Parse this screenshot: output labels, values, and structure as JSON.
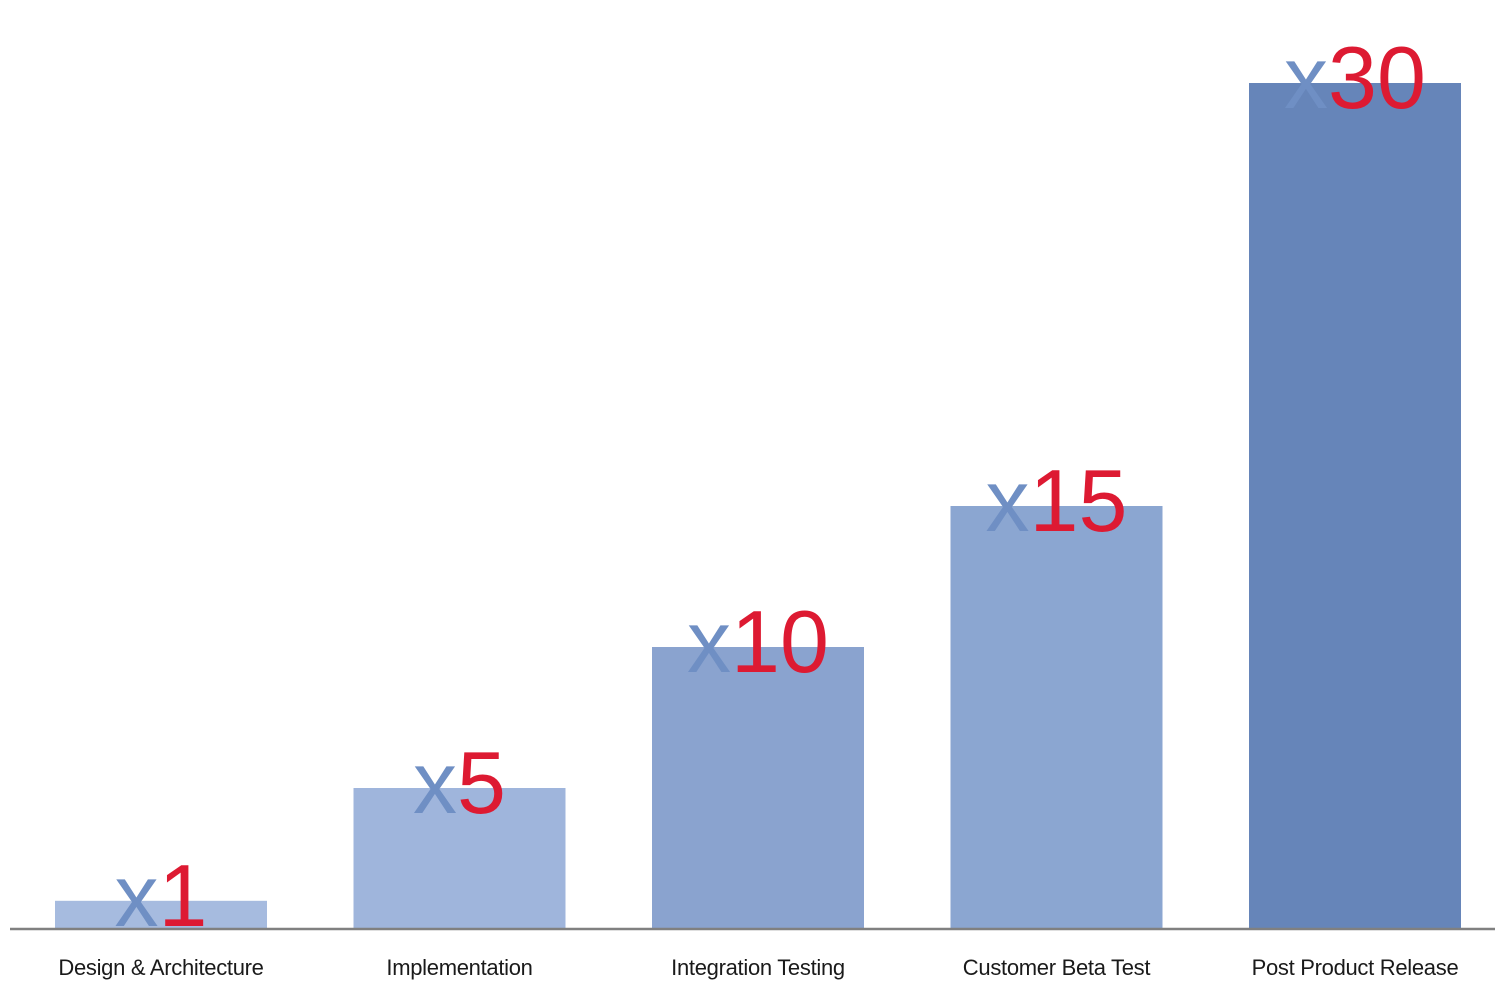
{
  "chart_data": {
    "type": "bar",
    "title": "",
    "xlabel": "",
    "ylabel": "",
    "categories": [
      "Design & Architecture",
      "Implementation",
      "Integration Testing",
      "Customer Beta Test",
      "Post Product Release"
    ],
    "values": [
      1,
      5,
      10,
      15,
      30
    ],
    "data_labels": [
      {
        "prefix": "x",
        "number": "1"
      },
      {
        "prefix": "x",
        "number": "5"
      },
      {
        "prefix": "x",
        "number": "10"
      },
      {
        "prefix": "x",
        "number": "15"
      },
      {
        "prefix": "x",
        "number": "30"
      }
    ],
    "ylim": [
      0,
      30
    ],
    "grid": false,
    "legend": "none",
    "colors": {
      "bars": [
        "#a6bbdf",
        "#9fb5dc",
        "#8aa3cf",
        "#8ba6d1",
        "#6685b9"
      ],
      "label_prefix": "#6f8fc4",
      "label_number": "#dd1a32",
      "axis": "#808080",
      "category_text": "#1a1a1a"
    }
  }
}
